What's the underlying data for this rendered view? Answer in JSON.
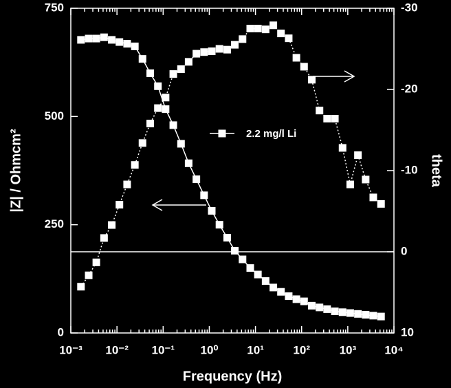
{
  "chart_data": {
    "type": "line",
    "xlabel": "Frequency (Hz)",
    "ylabel": "|Z| / Ohmcm²",
    "y2label": "theta",
    "xscale": "log",
    "xlim": [
      0.001,
      10000
    ],
    "xticks": [
      {
        "value": 0.001,
        "label": "10⁻³"
      },
      {
        "value": 0.01,
        "label": "10⁻²"
      },
      {
        "value": 0.1,
        "label": "10⁻¹"
      },
      {
        "value": 1,
        "label": "10⁰"
      },
      {
        "value": 10,
        "label": "10¹"
      },
      {
        "value": 100,
        "label": "10²"
      },
      {
        "value": 1000,
        "label": "10³"
      },
      {
        "value": 10000,
        "label": "10⁴"
      }
    ],
    "ylim": [
      0,
      750
    ],
    "yticks": [
      0,
      250,
      500,
      750
    ],
    "y2lim": [
      10,
      -30
    ],
    "y2ticks": [
      10,
      0,
      -10,
      -20,
      -30
    ],
    "reference_line_y2": 0,
    "x": [
      0.00166,
      0.00244,
      0.00357,
      0.00525,
      0.00771,
      0.0113,
      0.0166,
      0.0244,
      0.0357,
      0.0525,
      0.0771,
      0.113,
      0.166,
      0.244,
      0.357,
      0.525,
      0.771,
      1.13,
      1.66,
      2.44,
      3.57,
      5.25,
      7.71,
      11.3,
      16.6,
      24.4,
      35.7,
      52.5,
      77.1,
      113,
      166,
      244,
      357,
      525,
      771,
      1130,
      1660,
      2440,
      3570,
      5250
    ],
    "series": [
      {
        "name": "2.2 mg/l Li",
        "color": "#ffffff",
        "line": "solid",
        "values": [
          677,
          680,
          680,
          683,
          677,
          672,
          668,
          662,
          633,
          600,
          570,
          517,
          480,
          437,
          392,
          355,
          318,
          282,
          250,
          220,
          190,
          170,
          150,
          135,
          120,
          105,
          95,
          85,
          78,
          73,
          63,
          59,
          55,
          50,
          48,
          46,
          44,
          42,
          40,
          38
        ]
      },
      {
        "color": "#ffffff",
        "line": "dotted",
        "axis": "y2",
        "values": [
          4.3,
          2.9,
          1.3,
          -1.7,
          -3.3,
          -5.8,
          -8.3,
          -10.7,
          -13.4,
          -15.8,
          -17.7,
          -19.0,
          -21.9,
          -22.5,
          -23.4,
          -24.4,
          -24.6,
          -24.7,
          -25.0,
          -24.9,
          -25.5,
          -26.2,
          -27.5,
          -27.5,
          -27.4,
          -27.9,
          -26.9,
          -26.3,
          -23.9,
          -22.8,
          -21.2,
          -17.4,
          -16.4,
          -16.4,
          -12.8,
          -8.3,
          -11.9,
          -8.9,
          -6.7,
          -5.9
        ]
      }
    ]
  }
}
